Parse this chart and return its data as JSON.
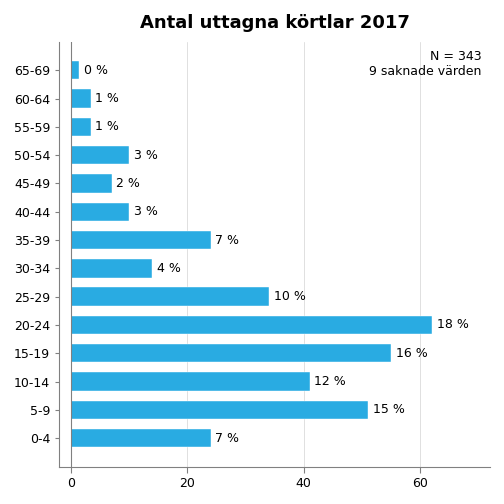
{
  "title": "Antal uttagna körtlar 2017",
  "annotation": "N = 343\n9 saknade värden",
  "categories": [
    "65-69",
    "60-64",
    "55-59",
    "50-54",
    "45-49",
    "40-44",
    "35-39",
    "30-34",
    "25-29",
    "20-24",
    "15-19",
    "10-14",
    "5-9",
    "0-4"
  ],
  "values": [
    1.4,
    3.4,
    3.4,
    10,
    7,
    10,
    24,
    14,
    34,
    62,
    55,
    41,
    51,
    24
  ],
  "labels": [
    "0 %",
    "1 %",
    "1 %",
    "3 %",
    "2 %",
    "3 %",
    "7 %",
    "4 %",
    "10 %",
    "18 %",
    "16 %",
    "12 %",
    "15 %",
    "7 %"
  ],
  "bar_color": "#29ABE2",
  "xlim": [
    -2,
    72
  ],
  "xticks": [
    0,
    20,
    40,
    60
  ],
  "background_color": "#ffffff",
  "plot_bg_color": "#ffffff",
  "title_fontsize": 13,
  "label_fontsize": 9,
  "tick_fontsize": 9,
  "annotation_fontsize": 9
}
